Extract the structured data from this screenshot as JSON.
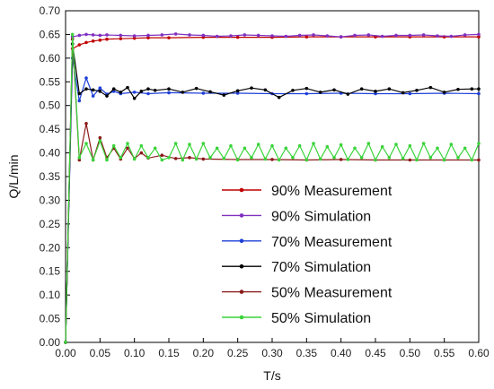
{
  "chart_data": {
    "type": "line",
    "xlabel": "T/s",
    "ylabel": "Q/L/min",
    "xlim": [
      0,
      0.6
    ],
    "ylim": [
      0,
      0.7
    ],
    "x_ticks": [
      "0.00",
      "0.05",
      "0.10",
      "0.15",
      "0.20",
      "0.25",
      "0.30",
      "0.35",
      "0.40",
      "0.45",
      "0.50",
      "0.55",
      "0.60"
    ],
    "y_ticks": [
      "0.00",
      "0.05",
      "0.10",
      "0.15",
      "0.20",
      "0.25",
      "0.30",
      "0.35",
      "0.40",
      "0.45",
      "0.50",
      "0.55",
      "0.60",
      "0.65",
      "0.70"
    ],
    "grid": false,
    "legend_position": "bottom-right",
    "series": [
      {
        "name": "90% Measurement",
        "color": "#c00000",
        "x": [
          0,
          0.01,
          0.02,
          0.03,
          0.04,
          0.05,
          0.06,
          0.08,
          0.1,
          0.12,
          0.15,
          0.2,
          0.25,
          0.3,
          0.35,
          0.4,
          0.45,
          0.5,
          0.55,
          0.6
        ],
        "y": [
          0,
          0.62,
          0.628,
          0.633,
          0.636,
          0.638,
          0.64,
          0.641,
          0.642,
          0.643,
          0.643,
          0.644,
          0.644,
          0.644,
          0.645,
          0.645,
          0.645,
          0.645,
          0.645,
          0.645
        ]
      },
      {
        "name": "90% Simulation",
        "color": "#8030c0",
        "x": [
          0,
          0.01,
          0.02,
          0.03,
          0.04,
          0.05,
          0.06,
          0.08,
          0.1,
          0.12,
          0.14,
          0.16,
          0.18,
          0.2,
          0.22,
          0.24,
          0.26,
          0.28,
          0.3,
          0.32,
          0.34,
          0.36,
          0.38,
          0.4,
          0.42,
          0.44,
          0.46,
          0.48,
          0.5,
          0.52,
          0.54,
          0.56,
          0.58,
          0.6
        ],
        "y": [
          0,
          0.645,
          0.648,
          0.65,
          0.649,
          0.648,
          0.649,
          0.648,
          0.647,
          0.648,
          0.649,
          0.651,
          0.649,
          0.648,
          0.646,
          0.647,
          0.649,
          0.648,
          0.647,
          0.646,
          0.648,
          0.649,
          0.647,
          0.645,
          0.648,
          0.649,
          0.646,
          0.648,
          0.648,
          0.649,
          0.647,
          0.646,
          0.649,
          0.65
        ]
      },
      {
        "name": "70% Measurement",
        "color": "#1e3fd8",
        "x": [
          0,
          0.01,
          0.02,
          0.03,
          0.04,
          0.05,
          0.06,
          0.07,
          0.08,
          0.1,
          0.12,
          0.15,
          0.2,
          0.25,
          0.3,
          0.35,
          0.4,
          0.45,
          0.5,
          0.55,
          0.6
        ],
        "y": [
          0,
          0.6,
          0.51,
          0.558,
          0.52,
          0.537,
          0.524,
          0.53,
          0.525,
          0.528,
          0.525,
          0.527,
          0.526,
          0.526,
          0.525,
          0.525,
          0.526,
          0.525,
          0.525,
          0.526,
          0.525
        ]
      },
      {
        "name": "70% Simulation",
        "color": "#000000",
        "x": [
          0,
          0.01,
          0.02,
          0.03,
          0.04,
          0.05,
          0.06,
          0.07,
          0.08,
          0.09,
          0.1,
          0.11,
          0.12,
          0.13,
          0.15,
          0.17,
          0.19,
          0.21,
          0.23,
          0.25,
          0.27,
          0.29,
          0.31,
          0.33,
          0.35,
          0.37,
          0.39,
          0.41,
          0.43,
          0.45,
          0.47,
          0.49,
          0.51,
          0.53,
          0.55,
          0.57,
          0.59,
          0.6
        ],
        "y": [
          0,
          0.63,
          0.525,
          0.535,
          0.533,
          0.53,
          0.52,
          0.535,
          0.528,
          0.538,
          0.515,
          0.53,
          0.535,
          0.532,
          0.535,
          0.528,
          0.536,
          0.529,
          0.522,
          0.531,
          0.537,
          0.533,
          0.517,
          0.532,
          0.536,
          0.528,
          0.533,
          0.524,
          0.535,
          0.53,
          0.535,
          0.527,
          0.532,
          0.538,
          0.528,
          0.534,
          0.535,
          0.535
        ]
      },
      {
        "name": "50% Measurement",
        "color": "#8b1a1a",
        "x": [
          0,
          0.01,
          0.02,
          0.03,
          0.04,
          0.05,
          0.06,
          0.07,
          0.08,
          0.09,
          0.1,
          0.11,
          0.12,
          0.14,
          0.16,
          0.18,
          0.2,
          0.25,
          0.3,
          0.35,
          0.4,
          0.45,
          0.5,
          0.55,
          0.6
        ],
        "y": [
          0,
          0.64,
          0.385,
          0.462,
          0.385,
          0.432,
          0.39,
          0.41,
          0.387,
          0.41,
          0.388,
          0.4,
          0.389,
          0.395,
          0.388,
          0.39,
          0.387,
          0.386,
          0.386,
          0.385,
          0.386,
          0.385,
          0.385,
          0.385,
          0.385
        ]
      },
      {
        "name": "50% Simulation",
        "color": "#3ad43a",
        "x": [
          0,
          0.01,
          0.02,
          0.03,
          0.04,
          0.05,
          0.06,
          0.07,
          0.08,
          0.09,
          0.1,
          0.11,
          0.12,
          0.13,
          0.14,
          0.15,
          0.16,
          0.17,
          0.18,
          0.19,
          0.2,
          0.21,
          0.22,
          0.23,
          0.24,
          0.25,
          0.26,
          0.27,
          0.28,
          0.29,
          0.3,
          0.31,
          0.32,
          0.33,
          0.34,
          0.35,
          0.36,
          0.37,
          0.38,
          0.39,
          0.4,
          0.41,
          0.42,
          0.43,
          0.44,
          0.45,
          0.46,
          0.47,
          0.48,
          0.49,
          0.5,
          0.51,
          0.52,
          0.53,
          0.54,
          0.55,
          0.56,
          0.57,
          0.58,
          0.59,
          0.6
        ],
        "y": [
          0,
          0.65,
          0.39,
          0.42,
          0.385,
          0.425,
          0.385,
          0.415,
          0.39,
          0.42,
          0.387,
          0.415,
          0.39,
          0.41,
          0.385,
          0.39,
          0.42,
          0.385,
          0.418,
          0.387,
          0.42,
          0.39,
          0.41,
          0.388,
          0.415,
          0.385,
          0.41,
          0.39,
          0.418,
          0.387,
          0.415,
          0.385,
          0.41,
          0.39,
          0.415,
          0.385,
          0.42,
          0.387,
          0.413,
          0.39,
          0.417,
          0.386,
          0.41,
          0.39,
          0.42,
          0.385,
          0.413,
          0.39,
          0.418,
          0.388,
          0.415,
          0.385,
          0.42,
          0.39,
          0.41,
          0.385,
          0.418,
          0.39,
          0.41,
          0.385,
          0.42
        ]
      }
    ]
  }
}
